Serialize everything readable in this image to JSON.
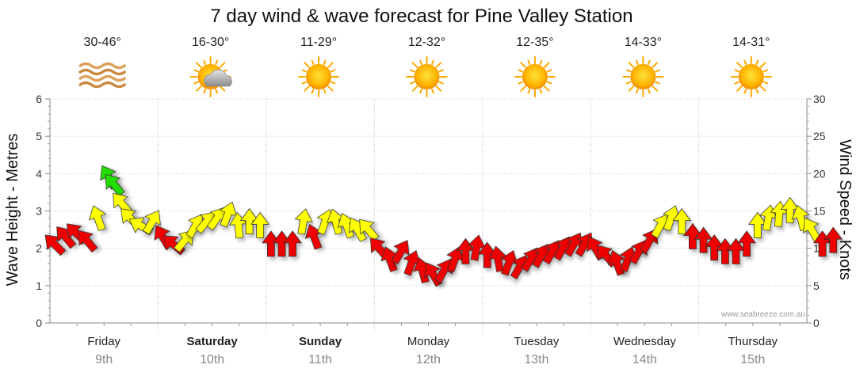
{
  "chart_data": {
    "type": "line",
    "title": "7 day wind & wave forecast for Pine Valley Station",
    "left_axis": {
      "label": "Wave Height - Metres",
      "range": [
        0,
        6
      ],
      "ticks": [
        "0",
        "1",
        "2",
        "3",
        "4",
        "5",
        "6"
      ]
    },
    "right_axis": {
      "label": "Wind Speed - Knots",
      "range": [
        0,
        30
      ],
      "ticks": [
        "0",
        "5",
        "10",
        "15",
        "20",
        "25",
        "30"
      ]
    },
    "grid": true,
    "credit": "www.seabreeze.com.au",
    "days": [
      {
        "name": "Friday",
        "date": "9th",
        "bold": false,
        "temp": "30-46°",
        "icon": "haze-icon"
      },
      {
        "name": "Saturday",
        "date": "10th",
        "bold": true,
        "temp": "16-30°",
        "icon": "partly-cloudy-icon"
      },
      {
        "name": "Sunday",
        "date": "11th",
        "bold": true,
        "temp": "11-29°",
        "icon": "sun-icon"
      },
      {
        "name": "Monday",
        "date": "12th",
        "bold": false,
        "temp": "12-32°",
        "icon": "sun-icon"
      },
      {
        "name": "Tuesday",
        "date": "13th",
        "bold": false,
        "temp": "12-35°",
        "icon": "sun-icon"
      },
      {
        "name": "Wednesday",
        "date": "14th",
        "bold": false,
        "temp": "14-33°",
        "icon": "sun-icon"
      },
      {
        "name": "Thursday",
        "date": "15th",
        "bold": false,
        "temp": "14-31°",
        "icon": "sun-icon"
      }
    ],
    "wind_legend_colors": {
      "red": "#ee0000",
      "yellow": "#ffff00",
      "green": "#22dd00"
    },
    "series": [
      {
        "name": "Wind",
        "units": "knots",
        "points": [
          {
            "t": 0.0,
            "v": 10.5,
            "dir": 315,
            "c": "red"
          },
          {
            "t": 0.1,
            "v": 11.5,
            "dir": 320,
            "c": "red"
          },
          {
            "t": 0.2,
            "v": 12.0,
            "dir": 315,
            "c": "red"
          },
          {
            "t": 0.3,
            "v": 11.0,
            "dir": 320,
            "c": "red"
          },
          {
            "t": 0.4,
            "v": 14.0,
            "dir": 340,
            "c": "yellow"
          },
          {
            "t": 0.5,
            "v": 19.5,
            "dir": 330,
            "c": "green"
          },
          {
            "t": 0.55,
            "v": 18.5,
            "dir": 320,
            "c": "green"
          },
          {
            "t": 0.62,
            "v": 16.0,
            "dir": 320,
            "c": "yellow"
          },
          {
            "t": 0.7,
            "v": 14.0,
            "dir": 315,
            "c": "yellow"
          },
          {
            "t": 0.8,
            "v": 13.0,
            "dir": 300,
            "c": "yellow"
          },
          {
            "t": 0.9,
            "v": 13.5,
            "dir": 30,
            "c": "yellow"
          },
          {
            "t": 1.0,
            "v": 11.5,
            "dir": 330,
            "c": "red"
          },
          {
            "t": 1.1,
            "v": 10.5,
            "dir": 310,
            "c": "red"
          },
          {
            "t": 1.2,
            "v": 11.0,
            "dir": 40,
            "c": "yellow"
          },
          {
            "t": 1.3,
            "v": 13.0,
            "dir": 30,
            "c": "yellow"
          },
          {
            "t": 1.4,
            "v": 13.5,
            "dir": 40,
            "c": "yellow"
          },
          {
            "t": 1.5,
            "v": 14.0,
            "dir": 35,
            "c": "yellow"
          },
          {
            "t": 1.6,
            "v": 14.5,
            "dir": 20,
            "c": "yellow"
          },
          {
            "t": 1.7,
            "v": 13.0,
            "dir": 355,
            "c": "yellow"
          },
          {
            "t": 1.8,
            "v": 13.5,
            "dir": 0,
            "c": "yellow"
          },
          {
            "t": 1.9,
            "v": 13.0,
            "dir": 0,
            "c": "yellow"
          },
          {
            "t": 2.0,
            "v": 10.5,
            "dir": 0,
            "c": "red"
          },
          {
            "t": 2.1,
            "v": 10.5,
            "dir": 0,
            "c": "red"
          },
          {
            "t": 2.2,
            "v": 10.5,
            "dir": 0,
            "c": "red"
          },
          {
            "t": 2.3,
            "v": 13.5,
            "dir": 10,
            "c": "yellow"
          },
          {
            "t": 2.4,
            "v": 11.5,
            "dir": 340,
            "c": "red"
          },
          {
            "t": 2.5,
            "v": 13.5,
            "dir": 20,
            "c": "yellow"
          },
          {
            "t": 2.6,
            "v": 13.5,
            "dir": 345,
            "c": "yellow"
          },
          {
            "t": 2.7,
            "v": 13.0,
            "dir": 340,
            "c": "yellow"
          },
          {
            "t": 2.8,
            "v": 12.5,
            "dir": 330,
            "c": "yellow"
          },
          {
            "t": 2.9,
            "v": 12.5,
            "dir": 320,
            "c": "yellow"
          },
          {
            "t": 3.0,
            "v": 10.0,
            "dir": 320,
            "c": "red"
          },
          {
            "t": 3.1,
            "v": 8.5,
            "dir": 340,
            "c": "red"
          },
          {
            "t": 3.2,
            "v": 9.5,
            "dir": 30,
            "c": "red"
          },
          {
            "t": 3.3,
            "v": 8.0,
            "dir": 20,
            "c": "red"
          },
          {
            "t": 3.4,
            "v": 7.0,
            "dir": 345,
            "c": "red"
          },
          {
            "t": 3.5,
            "v": 6.5,
            "dir": 330,
            "c": "red"
          },
          {
            "t": 3.6,
            "v": 7.0,
            "dir": 30,
            "c": "red"
          },
          {
            "t": 3.7,
            "v": 8.5,
            "dir": 20,
            "c": "red"
          },
          {
            "t": 3.8,
            "v": 9.5,
            "dir": 0,
            "c": "red"
          },
          {
            "t": 3.9,
            "v": 10.0,
            "dir": 10,
            "c": "red"
          },
          {
            "t": 4.0,
            "v": 9.0,
            "dir": 0,
            "c": "red"
          },
          {
            "t": 4.1,
            "v": 8.5,
            "dir": 350,
            "c": "red"
          },
          {
            "t": 4.2,
            "v": 8.0,
            "dir": 20,
            "c": "red"
          },
          {
            "t": 4.3,
            "v": 7.5,
            "dir": 30,
            "c": "red"
          },
          {
            "t": 4.4,
            "v": 8.5,
            "dir": 30,
            "c": "red"
          },
          {
            "t": 4.5,
            "v": 9.0,
            "dir": 30,
            "c": "red"
          },
          {
            "t": 4.6,
            "v": 9.5,
            "dir": 30,
            "c": "red"
          },
          {
            "t": 4.7,
            "v": 10.0,
            "dir": 30,
            "c": "red"
          },
          {
            "t": 4.8,
            "v": 10.5,
            "dir": 30,
            "c": "red"
          },
          {
            "t": 4.9,
            "v": 10.5,
            "dir": 30,
            "c": "red"
          },
          {
            "t": 5.0,
            "v": 10.0,
            "dir": 330,
            "c": "red"
          },
          {
            "t": 5.1,
            "v": 9.0,
            "dir": 320,
            "c": "red"
          },
          {
            "t": 5.2,
            "v": 8.0,
            "dir": 340,
            "c": "red"
          },
          {
            "t": 5.3,
            "v": 8.5,
            "dir": 20,
            "c": "red"
          },
          {
            "t": 5.4,
            "v": 9.5,
            "dir": 30,
            "c": "red"
          },
          {
            "t": 5.5,
            "v": 11.0,
            "dir": 30,
            "c": "red"
          },
          {
            "t": 5.6,
            "v": 13.0,
            "dir": 30,
            "c": "yellow"
          },
          {
            "t": 5.7,
            "v": 14.0,
            "dir": 20,
            "c": "yellow"
          },
          {
            "t": 5.8,
            "v": 13.5,
            "dir": 0,
            "c": "yellow"
          },
          {
            "t": 5.9,
            "v": 11.5,
            "dir": 0,
            "c": "red"
          },
          {
            "t": 6.0,
            "v": 11.0,
            "dir": 0,
            "c": "red"
          },
          {
            "t": 6.1,
            "v": 10.0,
            "dir": 0,
            "c": "red"
          },
          {
            "t": 6.2,
            "v": 9.5,
            "dir": 0,
            "c": "red"
          },
          {
            "t": 6.3,
            "v": 9.5,
            "dir": 0,
            "c": "red"
          },
          {
            "t": 6.4,
            "v": 10.5,
            "dir": 0,
            "c": "red"
          },
          {
            "t": 6.5,
            "v": 13.0,
            "dir": 0,
            "c": "yellow"
          },
          {
            "t": 6.6,
            "v": 14.0,
            "dir": 10,
            "c": "yellow"
          },
          {
            "t": 6.7,
            "v": 14.5,
            "dir": 5,
            "c": "yellow"
          },
          {
            "t": 6.8,
            "v": 15.0,
            "dir": 0,
            "c": "yellow"
          },
          {
            "t": 6.9,
            "v": 14.0,
            "dir": 345,
            "c": "yellow"
          },
          {
            "t": 7.0,
            "v": 12.5,
            "dir": 330,
            "c": "yellow"
          },
          {
            "t": 7.1,
            "v": 10.5,
            "dir": 0,
            "c": "red"
          },
          {
            "t": 7.2,
            "v": 11.0,
            "dir": 0,
            "c": "red"
          }
        ]
      }
    ]
  }
}
